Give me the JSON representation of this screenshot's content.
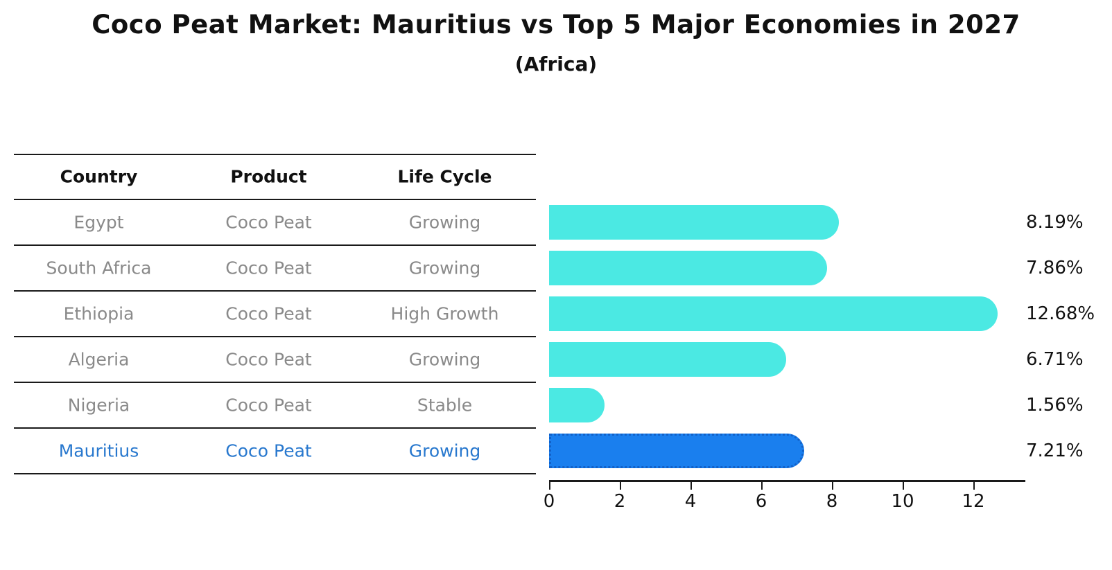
{
  "title": "Coco Peat Market: Mauritius vs Top 5 Major Economies in 2027",
  "subtitle": "(Africa)",
  "table": {
    "headers": [
      "Country",
      "Product",
      "Life Cycle"
    ],
    "rows": [
      {
        "country": "Egypt",
        "product": "Coco Peat",
        "life_cycle": "Growing",
        "highlight": false
      },
      {
        "country": "South Africa",
        "product": "Coco Peat",
        "life_cycle": "Growing",
        "highlight": false
      },
      {
        "country": "Ethiopia",
        "product": "Coco Peat",
        "life_cycle": "High Growth",
        "highlight": false
      },
      {
        "country": "Algeria",
        "product": "Coco Peat",
        "life_cycle": "Growing",
        "highlight": false
      },
      {
        "country": "Nigeria",
        "product": "Coco Peat",
        "life_cycle": "Stable",
        "highlight": false
      },
      {
        "country": "Mauritius",
        "product": "Coco Peat",
        "life_cycle": "Growing",
        "highlight": true
      }
    ]
  },
  "chart_data": {
    "type": "bar",
    "orientation": "horizontal",
    "categories": [
      "Egypt",
      "South Africa",
      "Ethiopia",
      "Algeria",
      "Nigeria",
      "Mauritius"
    ],
    "values": [
      8.19,
      7.86,
      12.68,
      6.71,
      1.56,
      7.21
    ],
    "value_labels": [
      "8.19%",
      "7.86%",
      "12.68%",
      "6.71%",
      "1.56%",
      "7.21%"
    ],
    "xticks": [
      0,
      2,
      4,
      6,
      8,
      10,
      12
    ],
    "xlim": [
      0,
      13.45
    ],
    "xlabel": "",
    "ylabel": "",
    "grid": false,
    "legend": false,
    "bar_color": "#4be9e3",
    "highlight_color": "#1a7fee",
    "highlight_index": 5,
    "highlight_text_color": "#2878ce"
  }
}
